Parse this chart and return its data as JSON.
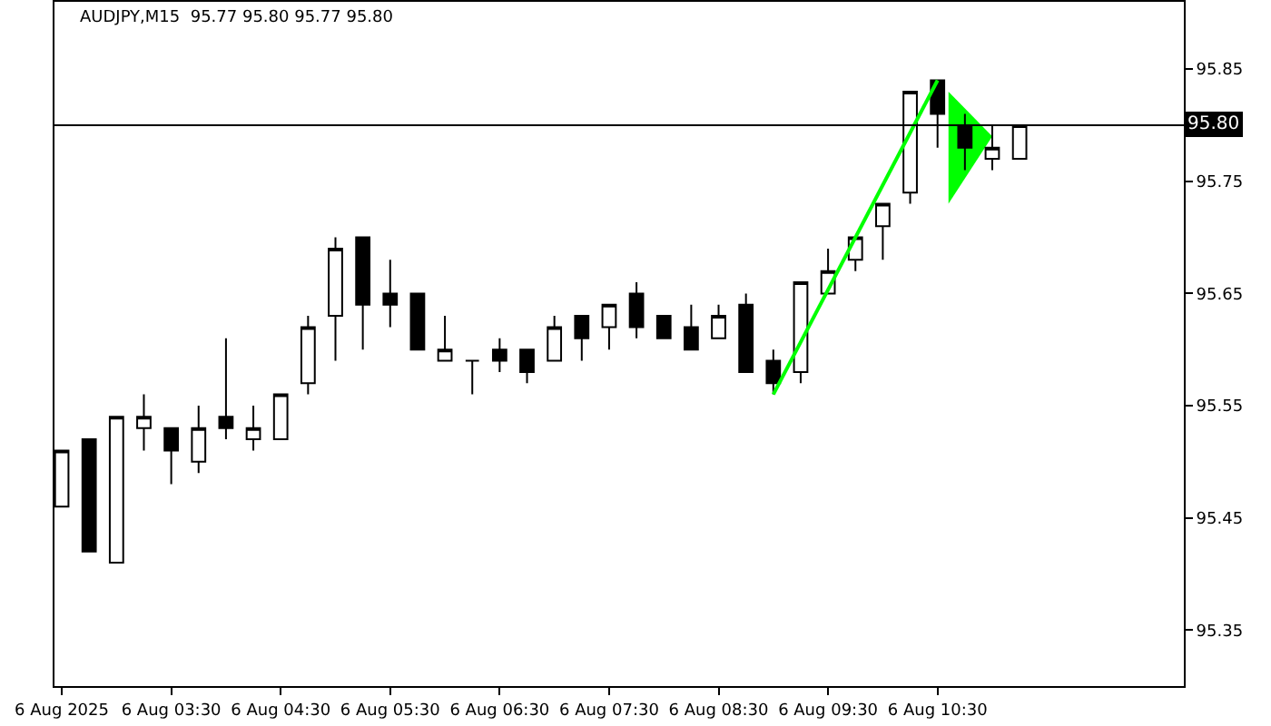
{
  "chart_data": {
    "type": "candlestick",
    "title": "AUDJPY,M15  95.77 95.80 95.77 95.80",
    "x": [
      "2025-08-06T02:30",
      "2025-08-06T02:45",
      "2025-08-06T03:00",
      "2025-08-06T03:15",
      "2025-08-06T03:30",
      "2025-08-06T03:45",
      "2025-08-06T04:00",
      "2025-08-06T04:15",
      "2025-08-06T04:30",
      "2025-08-06T04:45",
      "2025-08-06T05:00",
      "2025-08-06T05:15",
      "2025-08-06T05:30",
      "2025-08-06T05:45",
      "2025-08-06T06:00",
      "2025-08-06T06:15",
      "2025-08-06T06:30",
      "2025-08-06T06:45",
      "2025-08-06T07:00",
      "2025-08-06T07:15",
      "2025-08-06T07:30",
      "2025-08-06T07:45",
      "2025-08-06T08:00",
      "2025-08-06T08:15",
      "2025-08-06T08:30",
      "2025-08-06T08:45",
      "2025-08-06T09:00",
      "2025-08-06T09:15",
      "2025-08-06T09:30",
      "2025-08-06T09:45",
      "2025-08-06T10:00",
      "2025-08-06T10:15",
      "2025-08-06T10:30",
      "2025-08-06T10:45",
      "2025-08-06T11:00",
      "2025-08-06T11:15"
    ],
    "ohlc": [
      [
        95.46,
        95.51,
        95.46,
        95.51
      ],
      [
        95.52,
        95.52,
        95.42,
        95.42
      ],
      [
        95.41,
        95.54,
        95.41,
        95.54
      ],
      [
        95.53,
        95.56,
        95.51,
        95.54
      ],
      [
        95.53,
        95.53,
        95.48,
        95.51
      ],
      [
        95.5,
        95.55,
        95.49,
        95.53
      ],
      [
        95.54,
        95.61,
        95.52,
        95.53
      ],
      [
        95.52,
        95.55,
        95.51,
        95.53
      ],
      [
        95.52,
        95.56,
        95.52,
        95.56
      ],
      [
        95.57,
        95.63,
        95.56,
        95.62
      ],
      [
        95.63,
        95.7,
        95.59,
        95.69
      ],
      [
        95.7,
        95.7,
        95.6,
        95.64
      ],
      [
        95.65,
        95.68,
        95.62,
        95.64
      ],
      [
        95.65,
        95.65,
        95.6,
        95.6
      ],
      [
        95.59,
        95.63,
        95.59,
        95.6
      ],
      [
        95.59,
        95.59,
        95.56,
        95.59
      ],
      [
        95.6,
        95.61,
        95.58,
        95.59
      ],
      [
        95.6,
        95.6,
        95.57,
        95.58
      ],
      [
        95.59,
        95.63,
        95.59,
        95.62
      ],
      [
        95.63,
        95.63,
        95.59,
        95.61
      ],
      [
        95.62,
        95.64,
        95.6,
        95.64
      ],
      [
        95.65,
        95.66,
        95.61,
        95.62
      ],
      [
        95.63,
        95.63,
        95.61,
        95.61
      ],
      [
        95.62,
        95.64,
        95.6,
        95.6
      ],
      [
        95.61,
        95.64,
        95.61,
        95.63
      ],
      [
        95.64,
        95.65,
        95.58,
        95.58
      ],
      [
        95.59,
        95.6,
        95.56,
        95.57
      ],
      [
        95.58,
        95.66,
        95.57,
        95.66
      ],
      [
        95.65,
        95.69,
        95.65,
        95.67
      ],
      [
        95.68,
        95.7,
        95.67,
        95.7
      ],
      [
        95.71,
        95.73,
        95.68,
        95.73
      ],
      [
        95.74,
        95.83,
        95.73,
        95.83
      ],
      [
        95.84,
        95.84,
        95.78,
        95.81
      ],
      [
        95.8,
        95.81,
        95.76,
        95.78
      ],
      [
        95.77,
        95.8,
        95.76,
        95.78
      ],
      [
        95.77,
        95.8,
        95.77,
        95.8
      ]
    ],
    "series": [
      {
        "type": "line",
        "color": "#00ff00",
        "x": [
          "2025-08-06T09:00",
          "2025-08-06T10:30"
        ],
        "values": [
          95.56,
          95.84
        ]
      },
      {
        "type": "area",
        "color": "#00ff00",
        "x": [
          "2025-08-06T10:36",
          "2025-08-06T10:36",
          "2025-08-06T11:00"
        ],
        "values": [
          95.83,
          95.73,
          95.79
        ]
      }
    ],
    "xlim": [
      "2025-08-06T02:26",
      "2025-08-06T12:45"
    ],
    "xticks": [
      {
        "value": "2025-08-06T02:30",
        "label": "6 Aug 2025"
      },
      {
        "value": "2025-08-06T03:30",
        "label": "6 Aug 03:30"
      },
      {
        "value": "2025-08-06T04:30",
        "label": "6 Aug 04:30"
      },
      {
        "value": "2025-08-06T05:30",
        "label": "6 Aug 05:30"
      },
      {
        "value": "2025-08-06T06:30",
        "label": "6 Aug 06:30"
      },
      {
        "value": "2025-08-06T07:30",
        "label": "6 Aug 07:30"
      },
      {
        "value": "2025-08-06T08:30",
        "label": "6 Aug 08:30"
      },
      {
        "value": "2025-08-06T09:30",
        "label": "6 Aug 09:30"
      },
      {
        "value": "2025-08-06T10:30",
        "label": "6 Aug 10:30"
      }
    ],
    "ylim": [
      95.3,
      95.91
    ],
    "yticks": [
      95.35,
      95.45,
      95.55,
      95.65,
      95.75,
      95.85
    ],
    "ref_lines": [
      {
        "axis": "y",
        "value": 95.8,
        "label": "95.80",
        "color": "#000000"
      }
    ],
    "grid": false
  }
}
